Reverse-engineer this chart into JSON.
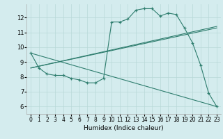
{
  "xlabel": "Humidex (Indice chaleur)",
  "ylabel": "",
  "bg_color": "#d4ecee",
  "grid_color": "#b8d8d8",
  "line_color": "#2e7d6e",
  "xlim": [
    -0.5,
    23.5
  ],
  "ylim": [
    5.5,
    12.9
  ],
  "yticks": [
    6,
    7,
    8,
    9,
    10,
    11,
    12
  ],
  "xticks": [
    0,
    1,
    2,
    3,
    4,
    5,
    6,
    7,
    8,
    9,
    10,
    11,
    12,
    13,
    14,
    15,
    16,
    17,
    18,
    19,
    20,
    21,
    22,
    23
  ],
  "series_main": {
    "x": [
      0,
      1,
      2,
      3,
      4,
      5,
      6,
      7,
      8,
      9,
      10,
      11,
      12,
      13,
      14,
      15,
      16,
      17,
      18,
      19,
      20,
      21,
      22,
      23
    ],
    "y": [
      9.6,
      8.6,
      8.2,
      8.1,
      8.1,
      7.9,
      7.8,
      7.6,
      7.6,
      7.9,
      11.7,
      11.7,
      11.9,
      12.5,
      12.6,
      12.6,
      12.1,
      12.3,
      12.2,
      11.3,
      10.3,
      8.8,
      6.9,
      6.0
    ]
  },
  "series_diag": {
    "x": [
      0,
      23
    ],
    "y": [
      9.6,
      6.0
    ]
  },
  "series_trend1": {
    "x": [
      0,
      23
    ],
    "y": [
      8.6,
      11.4
    ]
  },
  "series_trend2": {
    "x": [
      0,
      23
    ],
    "y": [
      8.6,
      11.3
    ]
  }
}
